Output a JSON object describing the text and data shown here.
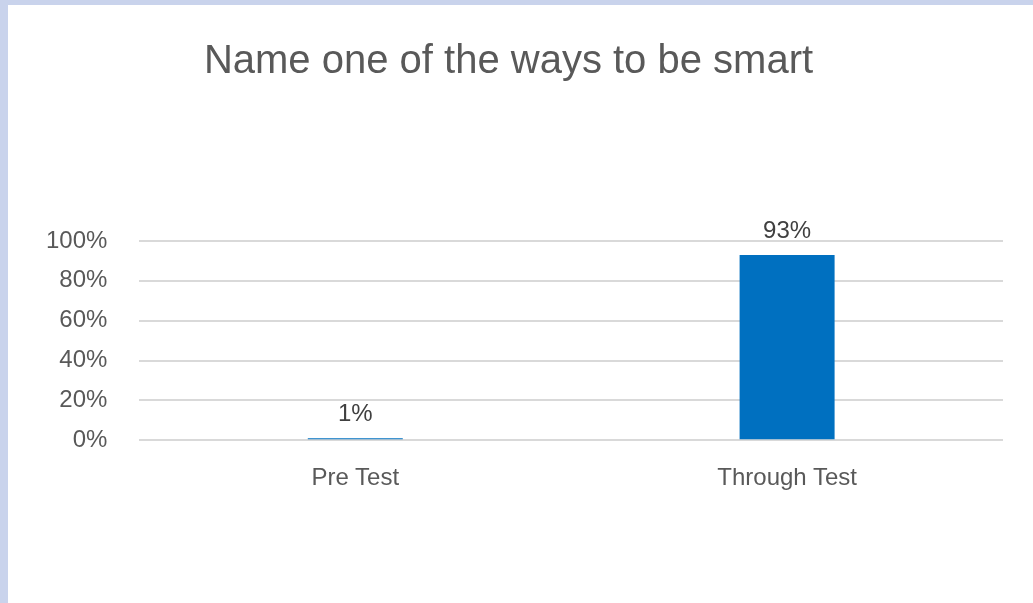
{
  "chart_data": {
    "type": "bar",
    "title": "Name one of the ways to be smart",
    "categories": [
      "Pre Test",
      "Through Test"
    ],
    "values": [
      1,
      93
    ],
    "value_labels": [
      "1%",
      "93%"
    ],
    "color": "#0070c0",
    "ylim": [
      0,
      100
    ],
    "yticks": [
      {
        "value": 0,
        "label": "0%"
      },
      {
        "value": 20,
        "label": "20%"
      },
      {
        "value": 40,
        "label": "40%"
      },
      {
        "value": 60,
        "label": "60%"
      },
      {
        "value": 80,
        "label": "80%"
      },
      {
        "value": 100,
        "label": "100%"
      }
    ],
    "grid": "y"
  }
}
